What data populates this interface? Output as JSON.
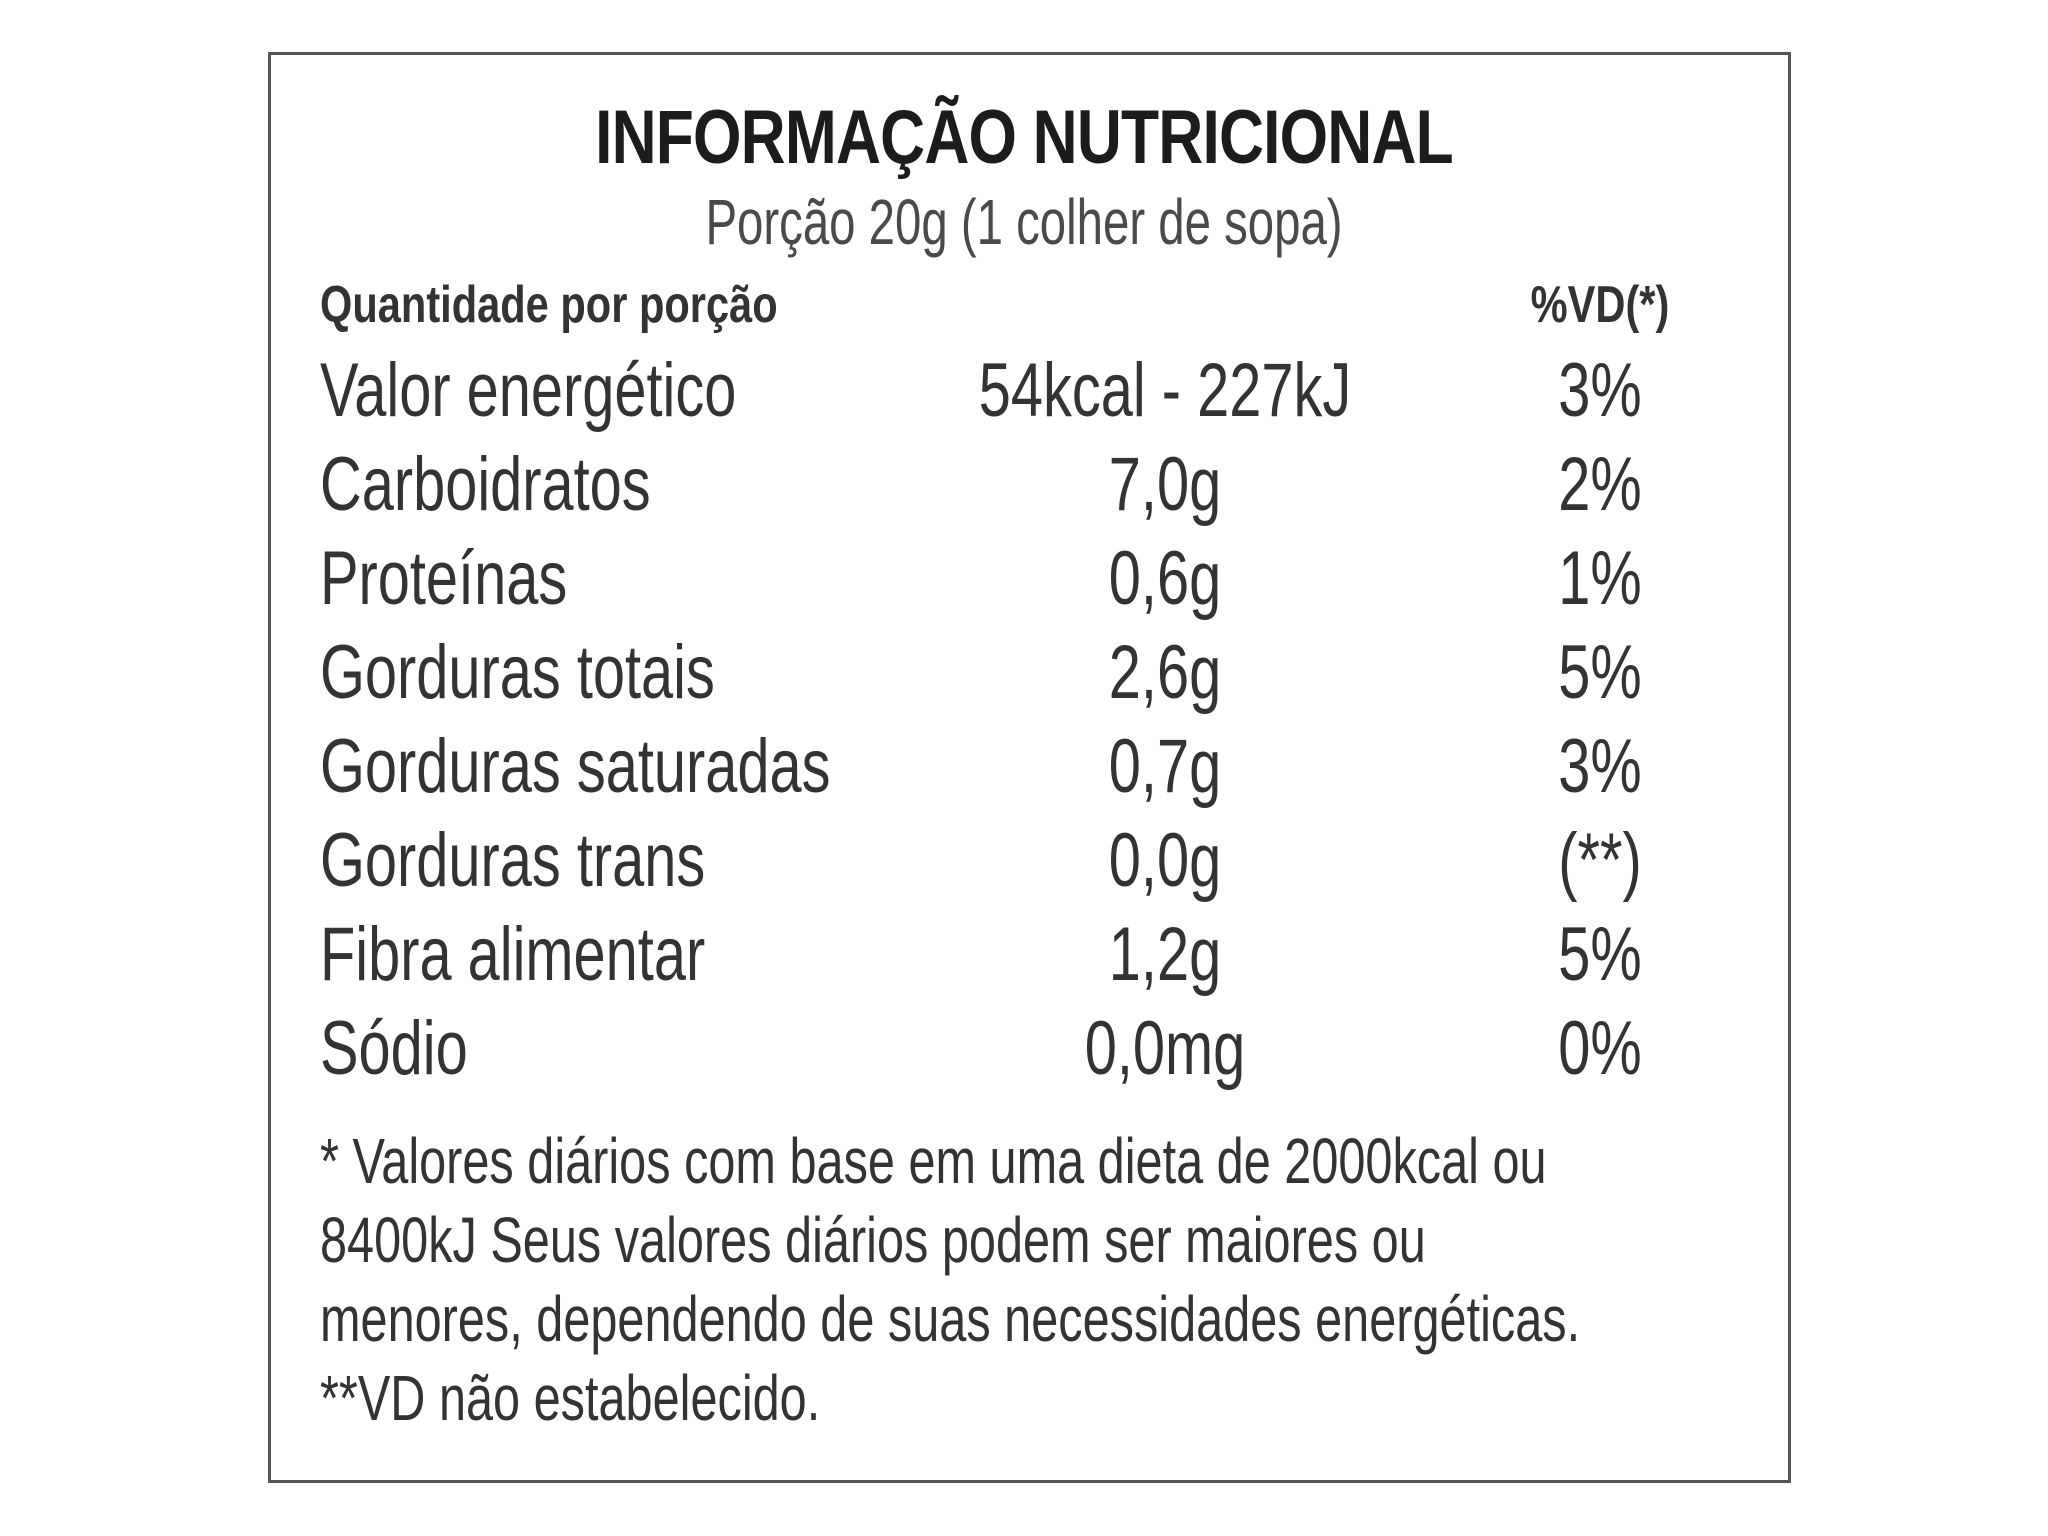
{
  "label": {
    "title": "INFORMAÇÃO NUTRICIONAL",
    "serving": "Porção 20g (1 colher de sopa)",
    "header_left": "Quantidade por porção",
    "header_right": "%VD(*)",
    "rows": [
      {
        "name": "Valor energético",
        "amount": "54kcal - 227kJ",
        "dv": "3%"
      },
      {
        "name": "Carboidratos",
        "amount": "7,0g",
        "dv": "2%"
      },
      {
        "name": "Proteínas",
        "amount": "0,6g",
        "dv": "1%"
      },
      {
        "name": "Gorduras totais",
        "amount": "2,6g",
        "dv": "5%"
      },
      {
        "name": "Gorduras saturadas",
        "amount": "0,7g",
        "dv": "3%"
      },
      {
        "name": "Gorduras trans",
        "amount": "0,0g",
        "dv": "(**)"
      },
      {
        "name": "Fibra alimentar",
        "amount": "1,2g",
        "dv": "5%"
      },
      {
        "name": "Sódio",
        "amount": "0,0mg",
        "dv": "0%"
      }
    ],
    "footnote_lines": [
      "* Valores diários com base em uma dieta de 2000kcal ou",
      "8400kJ Seus valores diários podem ser maiores ou",
      "menores, dependendo de suas necessidades energéticas.",
      "**VD não estabelecido."
    ]
  }
}
